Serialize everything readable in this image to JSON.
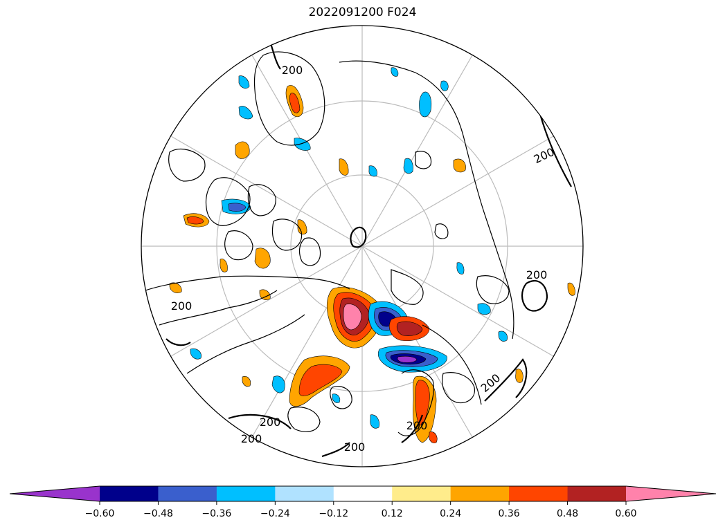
{
  "title": "2022091200 F024",
  "contour_label": "200",
  "colorbar": {
    "ticks": [
      "−0.60",
      "−0.48",
      "−0.36",
      "−0.24",
      "−0.12",
      "0.12",
      "0.24",
      "0.36",
      "0.48",
      "0.60"
    ],
    "colors": [
      "#9933cc",
      "#00008b",
      "#3a5fcd",
      "#00bfff",
      "#b0e2ff",
      "#ffffff",
      "#ffec8b",
      "#ffa500",
      "#ff4500",
      "#b22222",
      "#ff82ab"
    ]
  },
  "map_colors": {
    "land_outline": "#000000",
    "graticule": "#bbbbbb",
    "contour": "#000000"
  }
}
